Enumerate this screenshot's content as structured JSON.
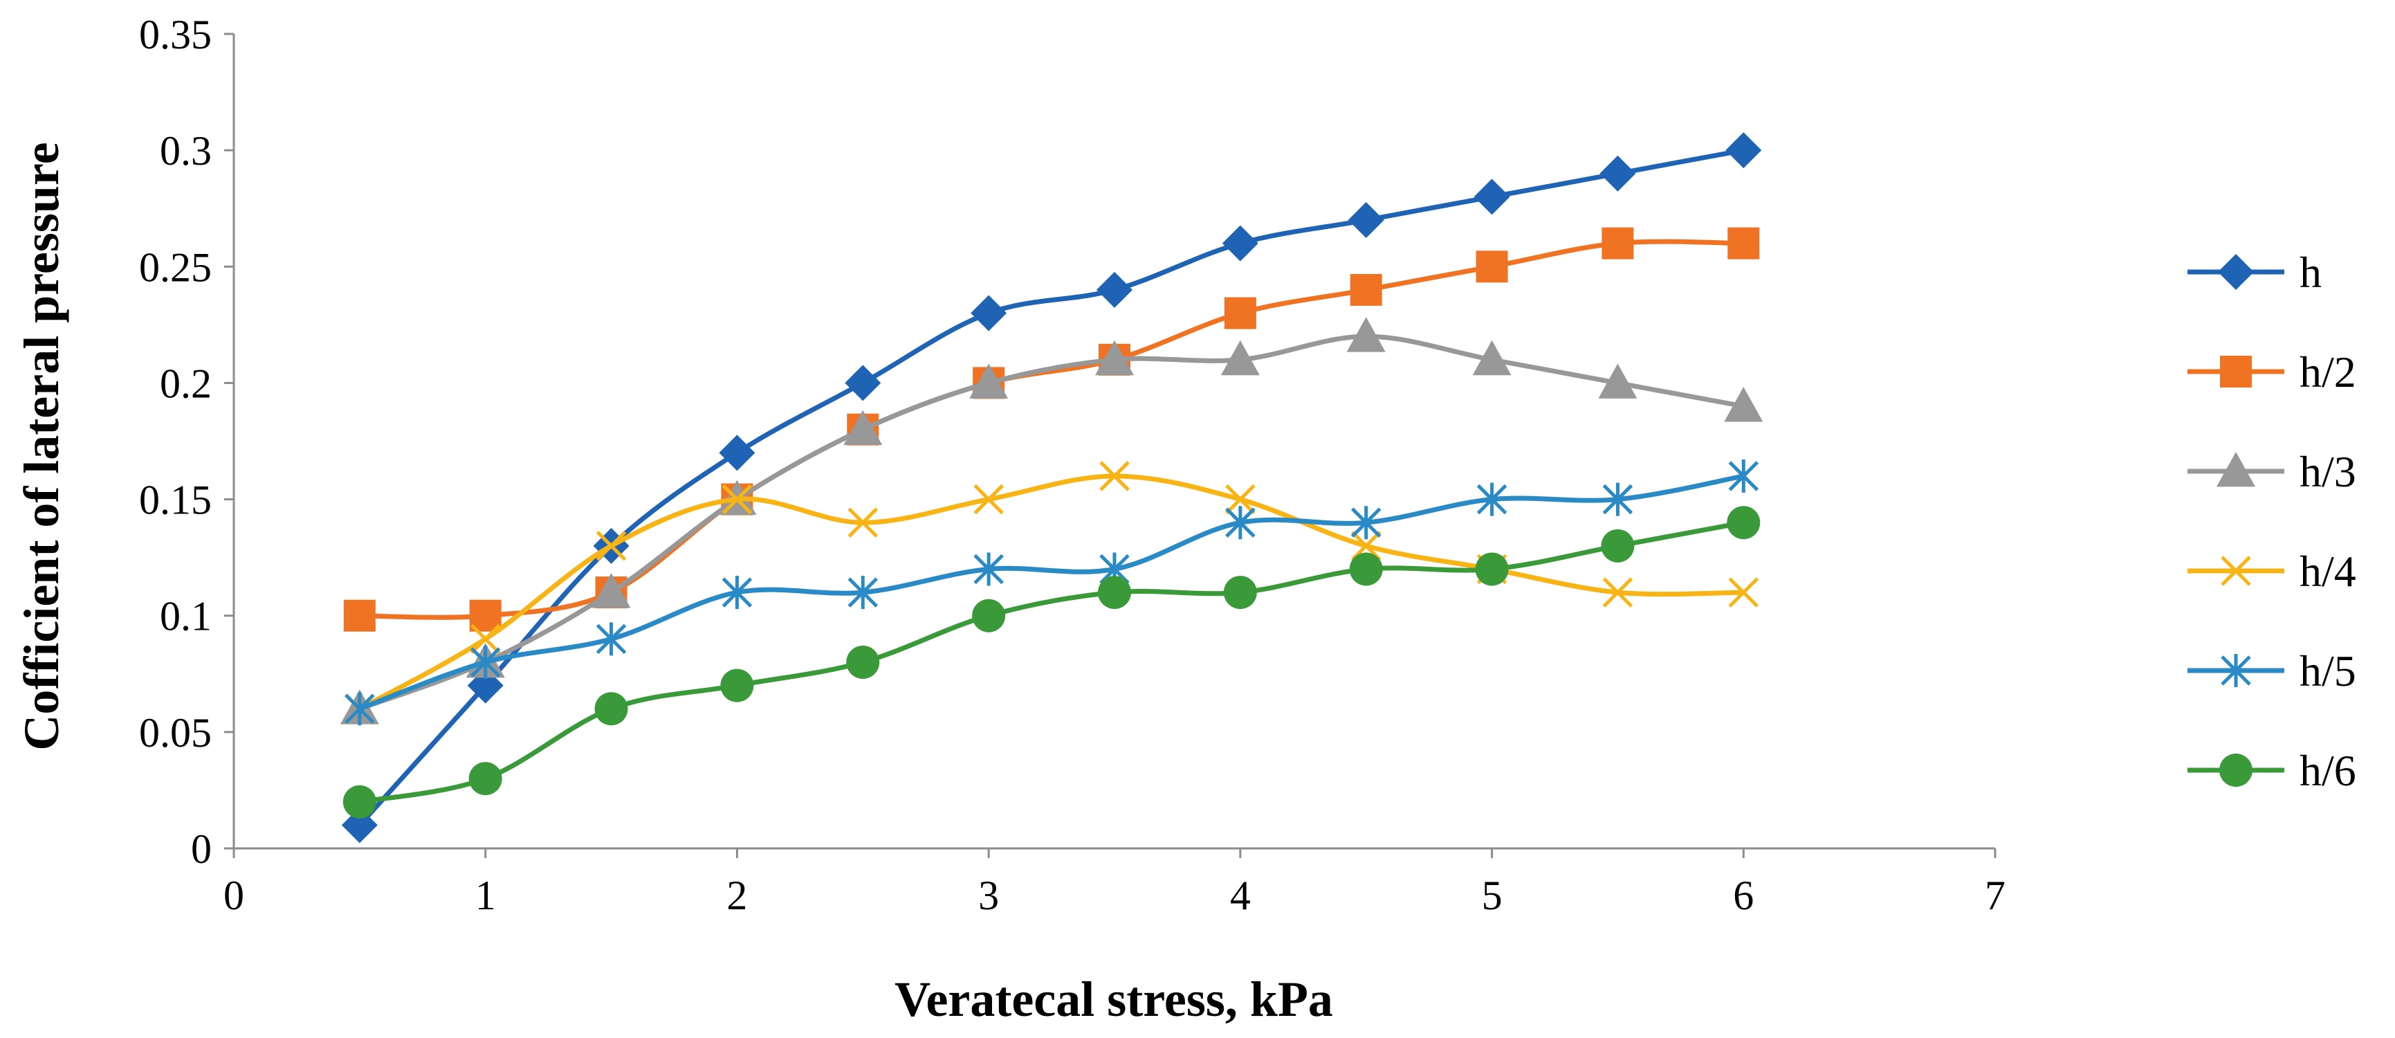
{
  "chart_data": {
    "type": "line",
    "title": "",
    "xlabel": "Veratecal stress, kPa",
    "ylabel": "Cofficient of lateral pressure",
    "xlim": [
      0,
      7
    ],
    "ylim": [
      0,
      0.35
    ],
    "x_ticks": [
      {
        "value": 0,
        "label": "0"
      },
      {
        "value": 1,
        "label": "1"
      },
      {
        "value": 2,
        "label": "2"
      },
      {
        "value": 3,
        "label": "3"
      },
      {
        "value": 4,
        "label": "4"
      },
      {
        "value": 5,
        "label": "5"
      },
      {
        "value": 6,
        "label": "6"
      },
      {
        "value": 7,
        "label": "7"
      }
    ],
    "y_ticks": [
      {
        "value": 0,
        "label": "0"
      },
      {
        "value": 0.05,
        "label": "0.05"
      },
      {
        "value": 0.1,
        "label": "0.1"
      },
      {
        "value": 0.15,
        "label": "0.15"
      },
      {
        "value": 0.2,
        "label": "0.2"
      },
      {
        "value": 0.25,
        "label": "0.25"
      },
      {
        "value": 0.3,
        "label": "0.3"
      },
      {
        "value": 0.35,
        "label": "0.35"
      }
    ],
    "grid": false,
    "legend_position": "right",
    "x": [
      0.5,
      1,
      1.5,
      2,
      2.5,
      3,
      3.5,
      4,
      4.5,
      5,
      5.5,
      6
    ],
    "series": [
      {
        "name": "h",
        "marker": "diamond",
        "color": "#1F63B4",
        "values": [
          0.01,
          0.07,
          0.13,
          0.17,
          0.2,
          0.23,
          0.24,
          0.26,
          0.27,
          0.28,
          0.29,
          0.3
        ]
      },
      {
        "name": "h/2",
        "marker": "square",
        "color": "#F07323",
        "values": [
          0.1,
          0.1,
          0.11,
          0.15,
          0.18,
          0.2,
          0.21,
          0.23,
          0.24,
          0.25,
          0.26,
          0.26
        ]
      },
      {
        "name": "h/3",
        "marker": "triangle",
        "color": "#989898",
        "values": [
          0.06,
          0.08,
          0.11,
          0.15,
          0.18,
          0.2,
          0.21,
          0.21,
          0.22,
          0.21,
          0.2,
          0.19
        ]
      },
      {
        "name": "h/4",
        "marker": "x",
        "color": "#F8B415",
        "values": [
          0.06,
          0.09,
          0.13,
          0.15,
          0.14,
          0.15,
          0.16,
          0.15,
          0.13,
          0.12,
          0.11,
          0.11
        ]
      },
      {
        "name": "h/5",
        "marker": "star",
        "color": "#2A8AC6",
        "values": [
          0.06,
          0.08,
          0.09,
          0.11,
          0.11,
          0.12,
          0.12,
          0.14,
          0.14,
          0.15,
          0.15,
          0.16
        ]
      },
      {
        "name": "h/6",
        "marker": "circle",
        "color": "#3A9A3A",
        "values": [
          0.02,
          0.03,
          0.06,
          0.07,
          0.08,
          0.1,
          0.11,
          0.11,
          0.12,
          0.12,
          0.13,
          0.14
        ]
      }
    ]
  }
}
